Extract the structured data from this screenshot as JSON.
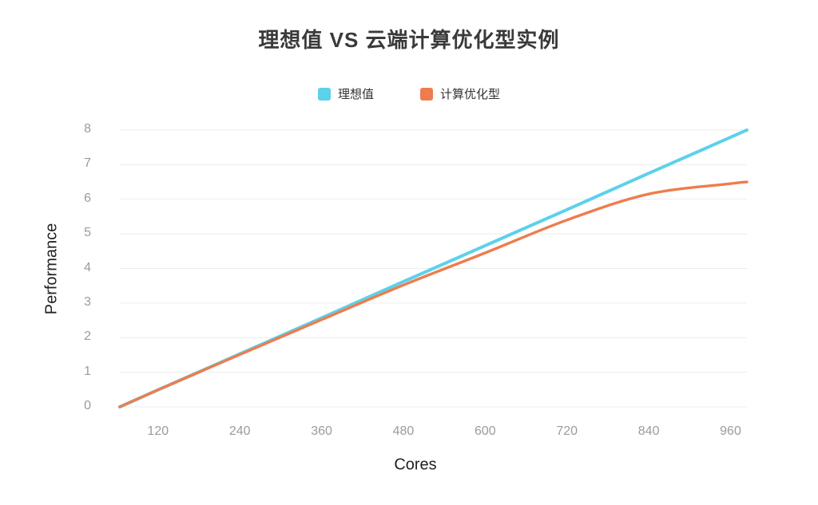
{
  "title": "理想值 VS 云端计算优化型实例",
  "legend": {
    "items": [
      {
        "label": "理想值",
        "color": "#5cd1eb"
      },
      {
        "label": "计算优化型",
        "color": "#ed7d4e"
      }
    ]
  },
  "chart_data": {
    "type": "line",
    "title": "理想值 VS 云端计算优化型实例",
    "xlabel": "Cores",
    "ylabel": "Performance",
    "x": [
      64,
      120,
      240,
      360,
      480,
      600,
      720,
      840,
      960,
      984
    ],
    "series": [
      {
        "name": "理想值",
        "color": "#5cd1eb",
        "values": [
          0,
          0.49,
          1.53,
          2.57,
          3.62,
          4.66,
          5.7,
          6.75,
          7.79,
          8.0
        ]
      },
      {
        "name": "计算优化型",
        "color": "#ed7d4e",
        "values": [
          0,
          0.49,
          1.51,
          2.52,
          3.52,
          4.45,
          5.4,
          6.15,
          6.45,
          6.5
        ]
      }
    ],
    "xlim": [
      64,
      984
    ],
    "ylim": [
      0,
      8
    ],
    "xticks": [
      120,
      240,
      360,
      480,
      600,
      720,
      840,
      960
    ],
    "yticks": [
      0,
      1,
      2,
      3,
      4,
      5,
      6,
      7,
      8
    ],
    "grid": "horizontal",
    "legend_position": "top",
    "colors": {
      "grid": "#ececec",
      "tick_label": "#9b9b9b",
      "axis_label": "#222222",
      "title": "#3a3a3a",
      "background": "#ffffff"
    }
  }
}
